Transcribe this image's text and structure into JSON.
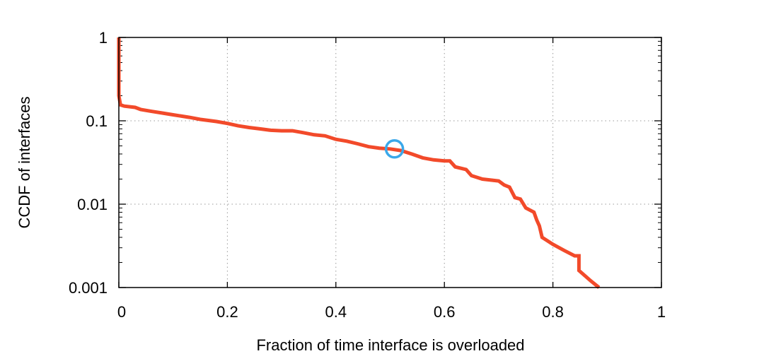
{
  "chart_data": {
    "type": "line",
    "title": "",
    "xlabel": "Fraction of time interface is overloaded",
    "ylabel": "CCDF of interfaces",
    "xscale": "linear",
    "yscale": "log",
    "xlim": [
      0,
      1
    ],
    "ylim": [
      0.001,
      1
    ],
    "grid": true,
    "x_ticks": [
      0,
      0.2,
      0.4,
      0.6,
      0.8,
      1
    ],
    "x_tick_labels": [
      "0",
      "0.2",
      "0.4",
      "0.6",
      "0.8",
      "1"
    ],
    "y_ticks": [
      0.001,
      0.01,
      0.1,
      1
    ],
    "y_tick_labels": [
      "0.001",
      "0.01",
      "0.1",
      "1"
    ],
    "line_color": "#f24a2a",
    "marker_color": "#3aa8ea",
    "series": [
      {
        "name": "CCDF",
        "points": [
          [
            0.0,
            1.0
          ],
          [
            0.0,
            0.7
          ],
          [
            0.0,
            0.35
          ],
          [
            0.0,
            0.2
          ],
          [
            0.003,
            0.155
          ],
          [
            0.01,
            0.15
          ],
          [
            0.03,
            0.145
          ],
          [
            0.04,
            0.137
          ],
          [
            0.06,
            0.13
          ],
          [
            0.08,
            0.124
          ],
          [
            0.1,
            0.118
          ],
          [
            0.13,
            0.11
          ],
          [
            0.15,
            0.104
          ],
          [
            0.18,
            0.098
          ],
          [
            0.2,
            0.093
          ],
          [
            0.22,
            0.087
          ],
          [
            0.24,
            0.083
          ],
          [
            0.26,
            0.08
          ],
          [
            0.28,
            0.077
          ],
          [
            0.3,
            0.076
          ],
          [
            0.32,
            0.076
          ],
          [
            0.34,
            0.072
          ],
          [
            0.36,
            0.068
          ],
          [
            0.38,
            0.066
          ],
          [
            0.4,
            0.06
          ],
          [
            0.42,
            0.057
          ],
          [
            0.44,
            0.053
          ],
          [
            0.46,
            0.049
          ],
          [
            0.48,
            0.047
          ],
          [
            0.5,
            0.046
          ],
          [
            0.52,
            0.044
          ],
          [
            0.54,
            0.04
          ],
          [
            0.56,
            0.036
          ],
          [
            0.58,
            0.034
          ],
          [
            0.6,
            0.033
          ],
          [
            0.61,
            0.033
          ],
          [
            0.62,
            0.028
          ],
          [
            0.64,
            0.026
          ],
          [
            0.65,
            0.022
          ],
          [
            0.67,
            0.02
          ],
          [
            0.7,
            0.019
          ],
          [
            0.71,
            0.017
          ],
          [
            0.72,
            0.016
          ],
          [
            0.73,
            0.012
          ],
          [
            0.74,
            0.0115
          ],
          [
            0.75,
            0.009
          ],
          [
            0.765,
            0.008
          ],
          [
            0.77,
            0.0065
          ],
          [
            0.775,
            0.0055
          ],
          [
            0.78,
            0.004
          ],
          [
            0.8,
            0.0033
          ],
          [
            0.82,
            0.0028
          ],
          [
            0.84,
            0.0024
          ],
          [
            0.848,
            0.0024
          ],
          [
            0.848,
            0.0016
          ],
          [
            0.87,
            0.0012
          ],
          [
            0.885,
            0.001
          ]
        ]
      }
    ],
    "annotations": [
      {
        "type": "circle",
        "x": 0.508,
        "y": 0.046
      }
    ]
  }
}
